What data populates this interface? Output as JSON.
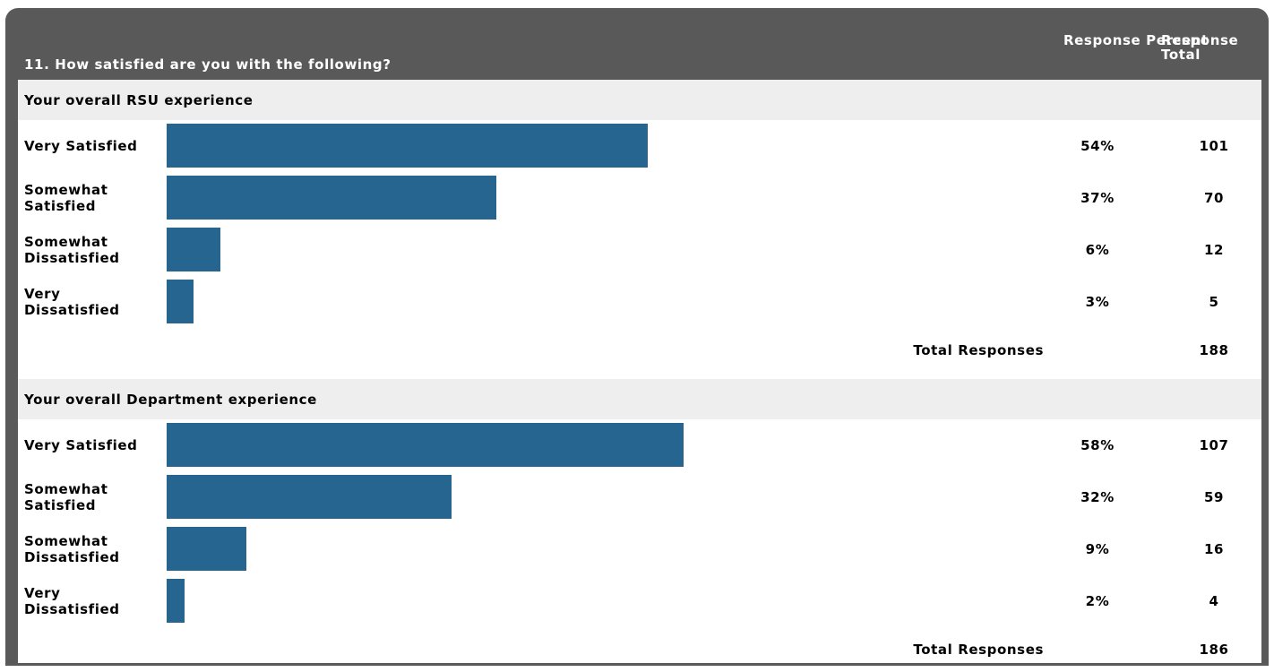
{
  "question": "11. How satisfied are you with the following?",
  "columns": {
    "percent": "Response Percent",
    "total": "Response Total"
  },
  "colors": {
    "bar": "#266590",
    "frame": "#595959",
    "section_bg": "#eeeeee"
  },
  "chart_data": [
    {
      "type": "bar",
      "title": "Your overall RSU experience",
      "categories": [
        "Very Satisfied",
        "Somewhat Satisfied",
        "Somewhat Dissatisfied",
        "Very Dissatisfied"
      ],
      "values": [
        54,
        37,
        6,
        3
      ],
      "value_labels": [
        "54%",
        "37%",
        "6%",
        "3%"
      ],
      "counts": [
        "101",
        "70",
        "12",
        "5"
      ],
      "total_label": "Total Responses",
      "total": "188"
    },
    {
      "type": "bar",
      "title": "Your overall Department experience",
      "categories": [
        "Very Satisfied",
        "Somewhat Satisfied",
        "Somewhat Dissatisfied",
        "Very Dissatisfied"
      ],
      "values": [
        58,
        32,
        9,
        2
      ],
      "value_labels": [
        "58%",
        "32%",
        "9%",
        "2%"
      ],
      "counts": [
        "107",
        "59",
        "16",
        "4"
      ],
      "total_label": "Total Responses",
      "total": "186"
    }
  ]
}
